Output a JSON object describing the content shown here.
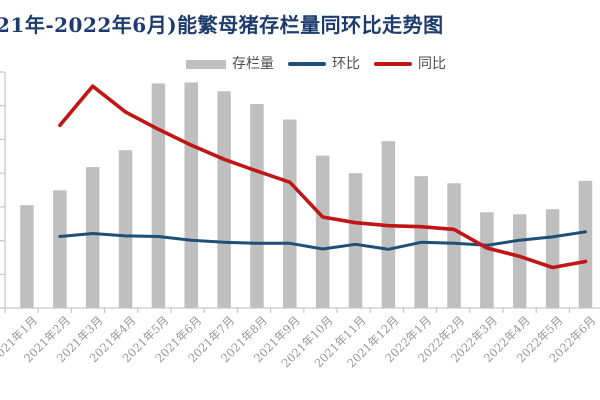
{
  "title": "21年-2022年6月)能繁母猪存栏量同环比走势图",
  "colors": {
    "title": "#1d3c6d",
    "bar": "#bfbfbf",
    "mom_line": "#1f4e79",
    "yoy_line": "#c01616",
    "axis": "#c9c9c9",
    "tick_label": "#979797",
    "legend_text": "#4d4d4d",
    "background": "#ffffff"
  },
  "legend": [
    {
      "label": "存栏量",
      "swatch": "bar"
    },
    {
      "label": "环比",
      "swatch": "line-blue"
    },
    {
      "label": "同比",
      "swatch": "line-red"
    }
  ],
  "chart_data": {
    "type": "bar",
    "subtype": "combo-bar-line",
    "title": "21年-2022年6月)能繁母猪存栏量同环比走势图",
    "categories": [
      "2021年1月",
      "2021年2月",
      "2021年3月",
      "2021年4月",
      "2021年5月",
      "2021年6月",
      "2021年7月",
      "2021年8月",
      "2021年9月",
      "2021年10月",
      "2021年11月",
      "2021年12月",
      "2022年1月",
      "2022年2月",
      "2022年3月",
      "2022年4月",
      "2022年5月",
      "2022年6月"
    ],
    "series": [
      {
        "name": "存栏量",
        "type": "bar",
        "values": [
          3.05,
          3.49,
          4.18,
          4.68,
          6.66,
          6.69,
          6.43,
          6.05,
          5.59,
          4.52,
          4.0,
          4.95,
          3.91,
          3.7,
          2.84,
          2.78,
          2.93,
          3.77
        ]
      },
      {
        "name": "环比",
        "type": "line",
        "values": [
          null,
          2.12,
          2.21,
          2.14,
          2.12,
          2.01,
          1.95,
          1.92,
          1.92,
          1.75,
          1.89,
          1.74,
          1.95,
          1.92,
          1.86,
          2.01,
          2.11,
          2.26
        ]
      },
      {
        "name": "同比",
        "type": "line",
        "values": [
          null,
          5.42,
          6.58,
          5.81,
          5.3,
          4.83,
          4.41,
          4.06,
          3.73,
          2.7,
          2.53,
          2.44,
          2.41,
          2.33,
          1.78,
          1.53,
          1.2,
          1.38
        ]
      }
    ],
    "ylabel": "",
    "xlabel": "",
    "ylim": [
      0,
      7
    ],
    "y_gridline_step": 1,
    "y_axis": {
      "tick_count": 8,
      "labels_visible": false
    },
    "x_axis": {
      "labels_visible": true,
      "tick_rotation": 45
    },
    "grid": "off",
    "legend_position": "top"
  }
}
